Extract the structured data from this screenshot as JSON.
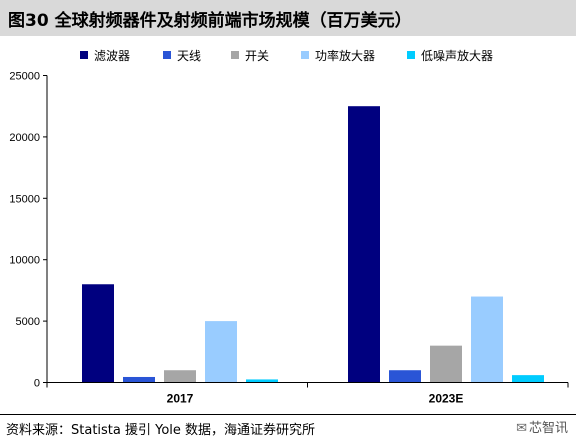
{
  "figure_title": "图30 全球射频器件及射频前端市场规模（百万美元）",
  "source": "资料来源：Statista 援引 Yole 数据，海通证券研究所",
  "watermark": "芯智讯",
  "colors": {
    "title_bg": "#d9d9d9",
    "滤波器": "#00007f",
    "天线": "#2a55d6",
    "开关": "#a6a6a6",
    "功率放大器": "#99ccff",
    "低噪声放大器": "#00ccff"
  },
  "chart_data": {
    "type": "bar",
    "title": "图30 全球射频器件及射频前端市场规模（百万美元）",
    "xlabel": "",
    "ylabel": "",
    "categories": [
      "2017",
      "2023E"
    ],
    "ylim": [
      0,
      25000
    ],
    "yticks": [
      0,
      5000,
      10000,
      15000,
      20000,
      25000
    ],
    "ytick_labels": [
      "0",
      "5000",
      "10000",
      "15000",
      "20000",
      "25000"
    ],
    "grid": false,
    "legend_position": "top",
    "series": [
      {
        "name": "滤波器",
        "color": "#00007f",
        "values": [
          8000,
          22500
        ]
      },
      {
        "name": "天线",
        "color": "#2a55d6",
        "values": [
          450,
          1000
        ]
      },
      {
        "name": "开关",
        "color": "#a6a6a6",
        "values": [
          1000,
          3000
        ]
      },
      {
        "name": "功率放大器",
        "color": "#99ccff",
        "values": [
          5000,
          7000
        ]
      },
      {
        "name": "低噪声放大器",
        "color": "#00ccff",
        "values": [
          250,
          600
        ]
      }
    ]
  }
}
